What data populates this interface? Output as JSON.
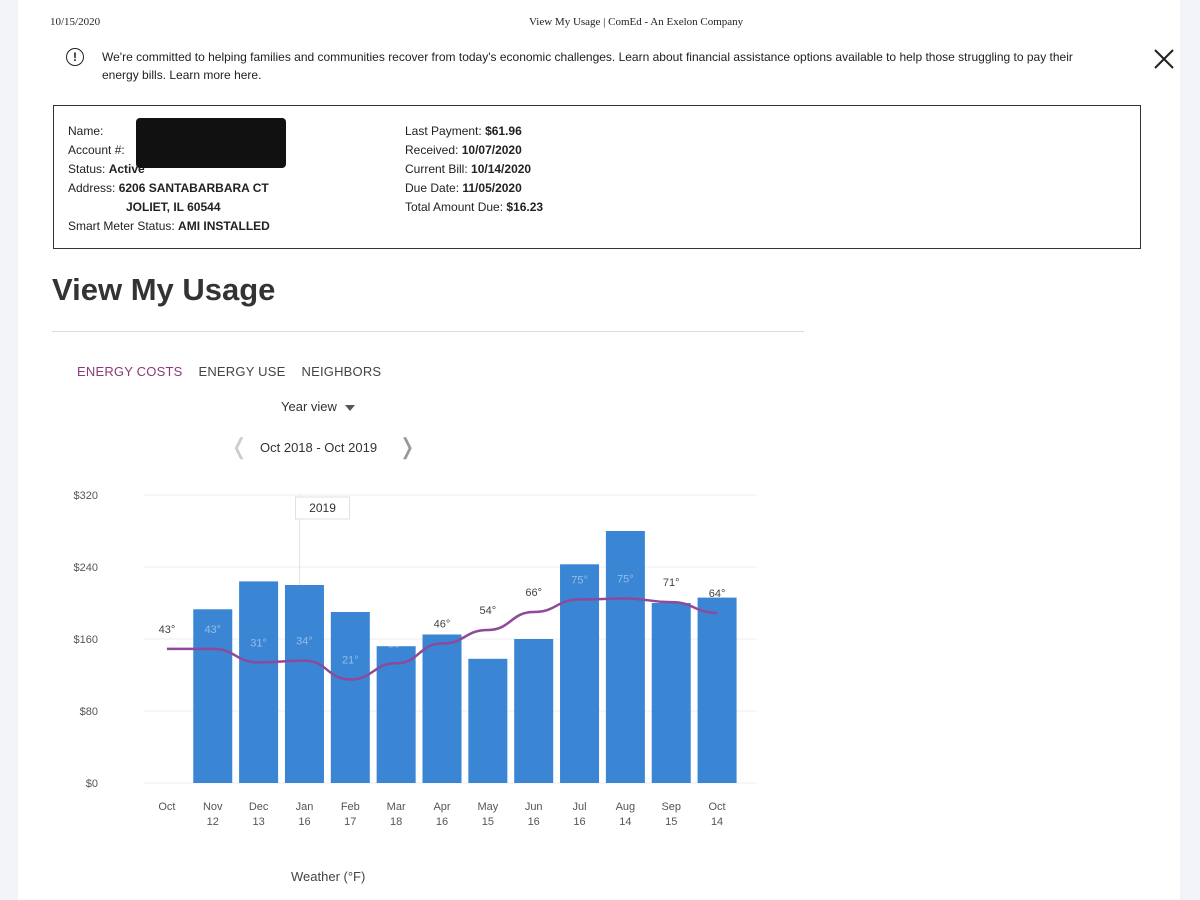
{
  "print_header": {
    "date": "10/15/2020",
    "title": "View My Usage | ComEd - An Exelon Company"
  },
  "notice": {
    "text": "We're committed to helping families and communities recover from today's economic challenges. Learn about financial assistance options available to help those struggling to pay their energy bills. Learn more here."
  },
  "account": {
    "name_label": "Name:",
    "account_label": "Account #:",
    "status_label": "Status:",
    "status_value": "Active",
    "address_label": "Address:",
    "address_line1": "6206 SANTABARBARA CT",
    "address_line2": "JOLIET, IL 60544",
    "smart_meter_label": "Smart Meter Status:",
    "smart_meter_value": "AMI INSTALLED",
    "last_payment_label": "Last Payment:",
    "last_payment_value": "$61.96",
    "received_label": "Received:",
    "received_value": "10/07/2020",
    "current_bill_label": "Current Bill:",
    "current_bill_value": "10/14/2020",
    "due_date_label": "Due Date:",
    "due_date_value": "11/05/2020",
    "total_due_label": "Total Amount Due:",
    "total_due_value": "$16.23"
  },
  "page_title": "View My Usage",
  "tabs": [
    {
      "label": "ENERGY COSTS",
      "active": true
    },
    {
      "label": "ENERGY USE",
      "active": false
    },
    {
      "label": "NEIGHBORS",
      "active": false
    }
  ],
  "view_select": "Year view",
  "period_label": "Oct 2018 - Oct 2019",
  "weather_label": "Weather (°F)",
  "colors": {
    "bar": "#3a85d4",
    "temp_line": "#8e4a98",
    "active_tab": "#8a3a78"
  },
  "chart_data": {
    "type": "bar",
    "categories": [
      "Oct",
      "Nov",
      "Dec",
      "Jan",
      "Feb",
      "Mar",
      "Apr",
      "May",
      "Jun",
      "Jul",
      "Aug",
      "Sep",
      "Oct"
    ],
    "category_days": [
      "",
      "12",
      "13",
      "16",
      "17",
      "18",
      "16",
      "15",
      "16",
      "16",
      "14",
      "15",
      "14"
    ],
    "values": [
      null,
      193,
      224,
      220,
      190,
      152,
      165,
      138,
      160,
      243,
      280,
      200,
      206
    ],
    "temps": [
      43,
      43,
      31,
      34,
      21,
      30,
      46,
      54,
      66,
      75,
      75,
      71,
      64
    ],
    "temp_labels": [
      "43°",
      "43°",
      "31°",
      "34°",
      "21°",
      "30°",
      "46°",
      "54°",
      "66°",
      "75°",
      "75°",
      "71°",
      "64°"
    ],
    "temp_line_values": [
      149,
      149,
      134,
      136,
      115,
      133,
      155,
      170,
      190,
      204,
      205,
      201,
      189
    ],
    "yticks": [
      "$320",
      "$240",
      "$160",
      "$80",
      "$0"
    ],
    "ylim": [
      0,
      320
    ],
    "year_marker": "2019",
    "grid": true
  }
}
